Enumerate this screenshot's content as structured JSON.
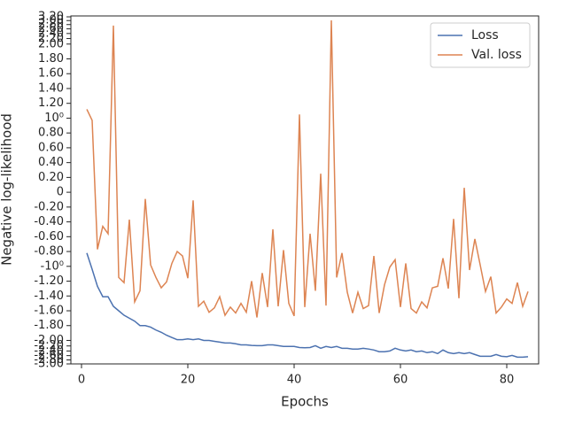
{
  "chart_data": {
    "type": "line",
    "xlabel": "Epochs",
    "ylabel": "Negative log-likelihood",
    "yscale": "symlog",
    "linthresh": 2,
    "x": [
      1,
      2,
      3,
      4,
      5,
      6,
      7,
      8,
      9,
      10,
      11,
      12,
      13,
      14,
      15,
      16,
      17,
      18,
      19,
      20,
      21,
      22,
      23,
      24,
      25,
      26,
      27,
      28,
      29,
      30,
      31,
      32,
      33,
      34,
      35,
      36,
      37,
      38,
      39,
      40,
      41,
      42,
      43,
      44,
      45,
      46,
      47,
      48,
      49,
      50,
      51,
      52,
      53,
      54,
      55,
      56,
      57,
      58,
      59,
      60,
      61,
      62,
      63,
      64,
      65,
      66,
      67,
      68,
      69,
      70,
      71,
      72,
      73,
      74,
      75,
      76,
      77,
      78,
      79,
      80,
      81,
      82,
      83,
      84
    ],
    "series": [
      {
        "name": "Loss",
        "color": "#4c72b0",
        "values": [
          -0.82,
          -1.04,
          -1.27,
          -1.41,
          -1.41,
          -1.54,
          -1.6,
          -1.66,
          -1.7,
          -1.74,
          -1.8,
          -1.8,
          -1.82,
          -1.86,
          -1.89,
          -1.93,
          -1.96,
          -1.99,
          -1.99,
          -1.98,
          -1.99,
          -1.98,
          -2.0,
          -2.0,
          -2.03,
          -2.06,
          -2.09,
          -2.09,
          -2.12,
          -2.16,
          -2.16,
          -2.18,
          -2.19,
          -2.19,
          -2.16,
          -2.16,
          -2.19,
          -2.22,
          -2.22,
          -2.22,
          -2.26,
          -2.27,
          -2.26,
          -2.19,
          -2.29,
          -2.22,
          -2.26,
          -2.22,
          -2.29,
          -2.29,
          -2.32,
          -2.32,
          -2.29,
          -2.32,
          -2.36,
          -2.43,
          -2.43,
          -2.4,
          -2.29,
          -2.36,
          -2.4,
          -2.36,
          -2.43,
          -2.4,
          -2.47,
          -2.43,
          -2.51,
          -2.36,
          -2.47,
          -2.51,
          -2.47,
          -2.51,
          -2.47,
          -2.55,
          -2.63,
          -2.63,
          -2.63,
          -2.55,
          -2.63,
          -2.65,
          -2.59,
          -2.67,
          -2.67,
          -2.65
        ]
      },
      {
        "name": "Val. loss",
        "color": "#dd8452",
        "values": [
          1.12,
          0.97,
          -0.77,
          -0.46,
          -0.56,
          2.75,
          -1.15,
          -1.22,
          -0.37,
          -1.48,
          -1.33,
          -0.09,
          -0.98,
          -1.15,
          -1.29,
          -1.21,
          -0.96,
          -0.8,
          -0.86,
          -1.16,
          -0.11,
          -1.54,
          -1.47,
          -1.62,
          -1.56,
          -1.41,
          -1.66,
          -1.55,
          -1.63,
          -1.5,
          -1.62,
          -1.2,
          -1.69,
          -1.09,
          -1.55,
          -0.5,
          -1.54,
          -0.78,
          -1.5,
          -1.67,
          1.05,
          -1.55,
          -0.56,
          -1.33,
          0.25,
          -1.53,
          3.01,
          -1.15,
          -0.82,
          -1.35,
          -1.63,
          -1.35,
          -1.57,
          -1.53,
          -0.86,
          -1.63,
          -1.25,
          -1.01,
          -0.91,
          -1.55,
          -0.96,
          -1.57,
          -1.63,
          -1.48,
          -1.56,
          -1.29,
          -1.27,
          -0.89,
          -1.3,
          -0.36,
          -1.43,
          0.06,
          -1.05,
          -0.63,
          -0.98,
          -1.34,
          -1.14,
          -1.63,
          -1.55,
          -1.44,
          -1.5,
          -1.22,
          -1.54,
          -1.34
        ]
      }
    ],
    "xlim": [
      -2,
      86
    ],
    "xticks": [
      0,
      20,
      40,
      60,
      80
    ],
    "ylim": [
      -3.0,
      3.25
    ],
    "yticks": [
      {
        "value": 3.2,
        "label": "3.20"
      },
      {
        "value": 3.0,
        "label": "3.00"
      },
      {
        "value": 2.8,
        "label": "2.80"
      },
      {
        "value": 2.6,
        "label": "2.60"
      },
      {
        "value": 2.4,
        "label": "2.40"
      },
      {
        "value": 2.2,
        "label": "2.20"
      },
      {
        "value": 2.0,
        "label": "2.00"
      },
      {
        "value": 1.8,
        "label": "1.80"
      },
      {
        "value": 1.6,
        "label": "1.60"
      },
      {
        "value": 1.4,
        "label": "1.40"
      },
      {
        "value": 1.2,
        "label": "1.20"
      },
      {
        "value": 1,
        "label": "10⁰"
      },
      {
        "value": 0.8,
        "label": "0.80"
      },
      {
        "value": 0.6,
        "label": "0.60"
      },
      {
        "value": 0.4,
        "label": "0.40"
      },
      {
        "value": 0.2,
        "label": "0.20"
      },
      0,
      {
        "value": -0.2,
        "label": "-0.20"
      },
      {
        "value": -0.4,
        "label": "-0.40"
      },
      {
        "value": -0.6,
        "label": "-0.60"
      },
      {
        "value": -0.8,
        "label": "-0.80"
      },
      {
        "value": -1,
        "label": "-10⁰"
      },
      {
        "value": -1.2,
        "label": "-1.20"
      },
      {
        "value": -1.4,
        "label": "-1.40"
      },
      {
        "value": -1.6,
        "label": "-1.60"
      },
      {
        "value": -1.8,
        "label": "-1.80"
      },
      {
        "value": -2.0,
        "label": "-2.00"
      },
      {
        "value": -2.2,
        "label": "-2.20"
      },
      {
        "value": -2.4,
        "label": "-2.40"
      },
      {
        "value": -2.6,
        "label": "-2.60"
      },
      {
        "value": -2.8,
        "label": "-2.80"
      },
      {
        "value": -3.0,
        "label": "-3.00"
      }
    ],
    "legend": "upper right"
  }
}
